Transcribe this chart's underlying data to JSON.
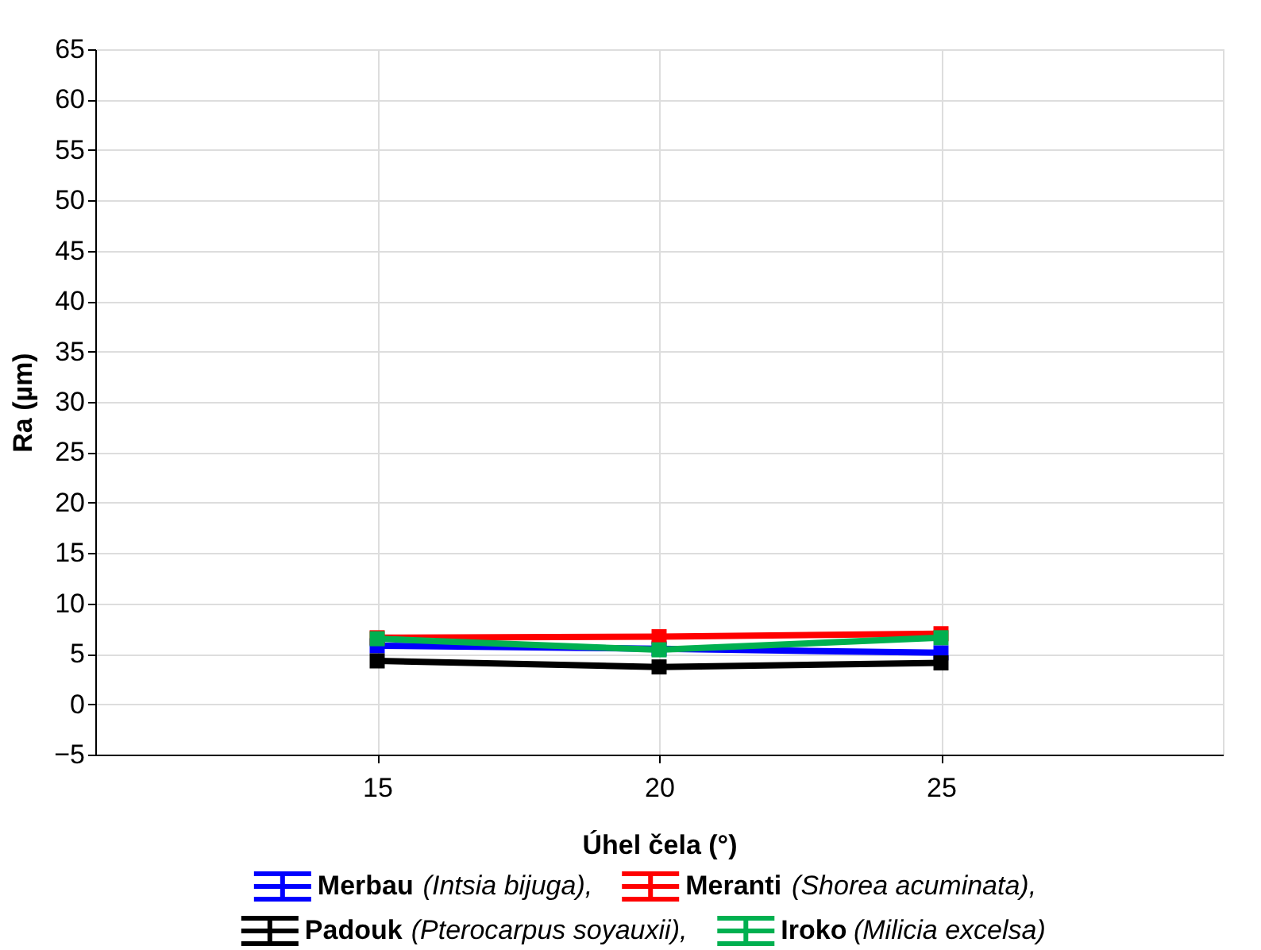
{
  "chart_data": {
    "type": "line",
    "xlabel": "Úhel čela (°)",
    "ylabel": "Ra (µm)",
    "x": [
      15,
      20,
      25
    ],
    "xlim": [
      10,
      30
    ],
    "xticks": [
      15,
      20,
      25
    ],
    "ylim": [
      -5,
      65
    ],
    "yticks": [
      -5,
      0,
      5,
      10,
      15,
      20,
      25,
      30,
      35,
      40,
      45,
      50,
      55,
      60,
      65
    ],
    "grid": true,
    "legend": "bottom",
    "marker": "square",
    "line_style": "solid",
    "series": [
      {
        "name": "Merbau (Intsia bijuga),",
        "color": "#0000ff",
        "values": [
          5.8,
          5.5,
          5.1
        ]
      },
      {
        "name": "Meranti (Shorea acuminata),",
        "color": "#ff0000",
        "values": [
          6.6,
          6.7,
          7.0
        ]
      },
      {
        "name": "Padouk (Pterocarpus soyauxii),",
        "color": "#000000",
        "values": [
          4.3,
          3.7,
          4.1
        ]
      },
      {
        "name": "Iroko (Milicia excelsa)",
        "color": "#00b050",
        "values": [
          6.5,
          5.4,
          6.6
        ]
      }
    ]
  }
}
